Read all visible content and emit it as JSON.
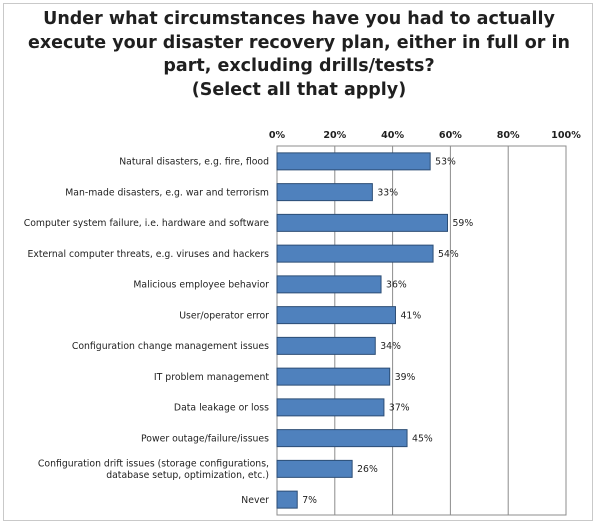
{
  "chart_data": {
    "type": "bar",
    "orientation": "horizontal",
    "title_lines": [
      "Under what circumstances have you had to actually",
      "execute your disaster recovery plan, either in full or in",
      "part, excluding drills/tests?",
      "(Select all that apply)"
    ],
    "categories": [
      [
        "Natural disasters, e.g. fire, flood"
      ],
      [
        "Man-made disasters, e.g. war and terrorism"
      ],
      [
        "Computer system failure, i.e. hardware and software"
      ],
      [
        "External computer threats, e.g. viruses and hackers"
      ],
      [
        "Malicious employee behavior"
      ],
      [
        "User/operator error"
      ],
      [
        "Configuration change management issues"
      ],
      [
        "IT problem management"
      ],
      [
        "Data leakage or loss"
      ],
      [
        "Power outage/failure/issues"
      ],
      [
        "Configuration drift issues (storage configurations,",
        "database setup, optimization, etc.)"
      ],
      [
        "Never"
      ]
    ],
    "values": [
      53,
      33,
      59,
      54,
      36,
      41,
      34,
      39,
      37,
      45,
      26,
      7
    ],
    "value_labels": [
      "53%",
      "33%",
      "59%",
      "54%",
      "36%",
      "41%",
      "34%",
      "39%",
      "37%",
      "45%",
      "26%",
      "7%"
    ],
    "x_ticks": [
      "0%",
      "20%",
      "40%",
      "60%",
      "80%",
      "100%"
    ],
    "xlim": [
      0,
      100
    ],
    "axis_position": "top",
    "grid": true,
    "legend": "none",
    "bar_color": "#4f81bd",
    "bar_edge_color": "#2c4d75",
    "grid_color": "#8c8c8c"
  }
}
